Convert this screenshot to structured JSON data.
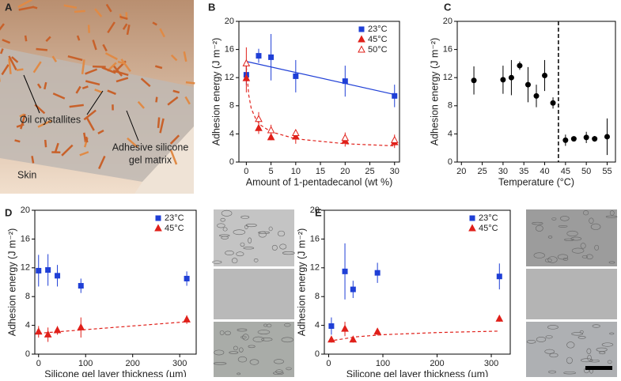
{
  "panel_a": {
    "label": "A",
    "texts": [
      "Oil crystallites",
      "Adhesive silicone",
      "gel matrix",
      "Skin"
    ]
  },
  "chart_data": [
    {
      "type": "scatter",
      "panel": "B",
      "xlabel": "Amount of 1-pentadecanol (wt %)",
      "ylabel": "Adhesion energy (J m⁻²)",
      "xlim": [
        -1.5,
        31
      ],
      "xticks": [
        0,
        5,
        10,
        15,
        20,
        25,
        30
      ],
      "ylim": [
        0,
        20
      ],
      "yticks": [
        0,
        4,
        8,
        12,
        16,
        20
      ],
      "legend": "upper right",
      "series": [
        {
          "name": "23°C",
          "color": "#1f3fd6",
          "marker": "square",
          "x": [
            0,
            2.5,
            5,
            10,
            20,
            30
          ],
          "values": [
            12.4,
            15.1,
            14.9,
            12.2,
            11.5,
            9.4
          ],
          "errors": [
            1.5,
            1.0,
            3.3,
            2.3,
            2.2,
            1.6
          ]
        },
        {
          "name": "45°C",
          "color": "#e0201a",
          "marker": "triangle",
          "x": [
            0,
            2.5,
            5,
            10,
            20,
            30
          ],
          "values": [
            11.9,
            4.8,
            3.5,
            3.6,
            3.0,
            2.8
          ],
          "errors": [
            2.0,
            0.8,
            0.4,
            1.0,
            0.8,
            0.8
          ]
        },
        {
          "name": "50°C",
          "color": "#e0201a",
          "marker": "triangle-open",
          "x": [
            0,
            2.5,
            5,
            10,
            20,
            30
          ],
          "values": [
            14.0,
            6.1,
            4.5,
            4.1,
            3.4,
            3.1
          ],
          "errors": [
            2.3,
            1.0,
            0.8,
            0.5,
            0.8,
            0.8
          ]
        }
      ],
      "fits": [
        {
          "color": "#1f3fd6",
          "dashed": false,
          "x": [
            0,
            30
          ],
          "values": [
            14.3,
            9.6
          ]
        },
        {
          "color": "#e0201a",
          "dashed": true,
          "x": [
            0,
            0.5,
            1,
            2,
            3,
            5,
            10,
            20,
            30
          ],
          "values": [
            13.5,
            9.5,
            7.6,
            6.0,
            5.2,
            4.3,
            3.3,
            2.6,
            2.3
          ]
        }
      ]
    },
    {
      "type": "scatter",
      "panel": "C",
      "xlabel": "Temperature (°C)",
      "ylabel": "Adhesion energy (J m⁻²)",
      "xlim": [
        19,
        57
      ],
      "xticks": [
        20,
        25,
        30,
        35,
        40,
        45,
        50,
        55
      ],
      "ylim": [
        0,
        20
      ],
      "yticks": [
        0,
        4,
        8,
        12,
        16,
        20
      ],
      "vline": 43.3,
      "series": [
        {
          "color": "#000000",
          "marker": "circle",
          "x": [
            23,
            30,
            32,
            34,
            36,
            38,
            40,
            42,
            45,
            47,
            50,
            52,
            55
          ],
          "values": [
            11.6,
            11.7,
            12.0,
            13.7,
            11.0,
            9.4,
            12.3,
            8.4,
            3.1,
            3.3,
            3.5,
            3.3,
            3.6
          ],
          "errors": [
            2.0,
            2.0,
            2.5,
            0.6,
            2.5,
            1.6,
            2.2,
            0.8,
            0.8,
            0.3,
            0.8,
            0.4,
            2.6
          ]
        }
      ]
    },
    {
      "type": "scatter",
      "panel": "D",
      "xlabel": "Silicone gel layer thickness (µm)",
      "ylabel": "Adhesion energy (J m⁻²)",
      "xlim": [
        -8,
        335
      ],
      "xticks": [
        0,
        100,
        200,
        300
      ],
      "ylim": [
        0,
        20
      ],
      "yticks": [
        0,
        4,
        8,
        12,
        16,
        20
      ],
      "legend": "upper right",
      "series": [
        {
          "name": "23°C",
          "color": "#1f3fd6",
          "marker": "square",
          "x": [
            0,
            20,
            40,
            90,
            315
          ],
          "values": [
            11.6,
            11.7,
            10.9,
            9.5,
            10.5
          ],
          "errors": [
            2.2,
            2.2,
            1.5,
            1.0,
            1.0
          ]
        },
        {
          "name": "45°C",
          "color": "#e0201a",
          "marker": "triangle",
          "x": [
            0,
            20,
            40,
            90,
            315
          ],
          "values": [
            3.1,
            2.7,
            3.3,
            3.7,
            4.8
          ],
          "errors": [
            0.8,
            1.0,
            0.6,
            1.4,
            0.6
          ]
        }
      ],
      "fits": [
        {
          "color": "#e0201a",
          "dashed": true,
          "x": [
            0,
            315
          ],
          "values": [
            2.9,
            4.5
          ]
        }
      ]
    },
    {
      "type": "scatter",
      "panel": "E",
      "xlabel": "Silicone gel layer thickness (µm)",
      "ylabel": "Adhesion energy (J m⁻²)",
      "xlim": [
        -8,
        335
      ],
      "xticks": [
        0,
        100,
        200,
        300
      ],
      "ylim": [
        0,
        20
      ],
      "yticks": [
        0,
        4,
        8,
        12,
        16,
        20
      ],
      "legend": "upper right",
      "series": [
        {
          "name": "23°C",
          "color": "#1f3fd6",
          "marker": "square",
          "x": [
            5,
            30,
            45,
            90,
            315
          ],
          "values": [
            3.9,
            11.5,
            9.0,
            11.3,
            10.8
          ],
          "errors": [
            1.2,
            3.9,
            1.2,
            1.4,
            1.8
          ]
        },
        {
          "name": "45°C",
          "color": "#e0201a",
          "marker": "triangle",
          "x": [
            5,
            30,
            45,
            90,
            315
          ],
          "values": [
            2.0,
            3.5,
            2.0,
            3.1,
            4.9
          ],
          "errors": [
            0.4,
            1.0,
            0.4,
            0.5,
            0.4
          ]
        }
      ],
      "fits": [
        {
          "color": "#e0201a",
          "dashed": true,
          "x": [
            0,
            50,
            100,
            200,
            315
          ],
          "values": [
            1.8,
            2.4,
            2.7,
            3.0,
            3.2
          ]
        }
      ]
    }
  ]
}
